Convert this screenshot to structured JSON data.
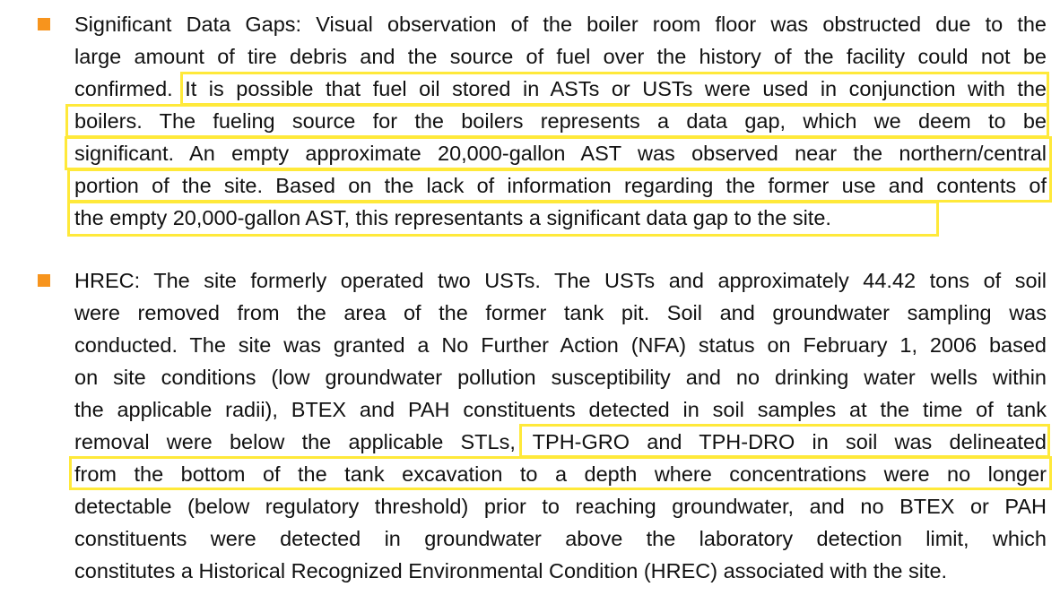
{
  "bullet_color": "#f7941d",
  "highlight_color": "#ffe93a",
  "paragraphs": [
    {
      "lines": [
        "Significant Data Gaps: Visual observation of the boiler room floor was obstructed due to the",
        "large amount of tire debris and the source of fuel over the history of the facility could not be",
        "confirmed. It is possible that fuel oil stored in ASTs or USTs were used in conjunction with the",
        "boilers. The fueling source for the boilers represents a data gap, which we deem to be",
        "significant. An empty approximate 20,000-gallon AST was observed near the northern/central",
        "portion of the site. Based on the lack of information regarding the former use and contents of",
        "the empty 20,000-gallon AST, this representants a significant data gap to the site."
      ]
    },
    {
      "lines": [
        "HREC: The site formerly operated two USTs. The USTs and approximately 44.42 tons of soil",
        "were removed from the area of the former tank pit. Soil and groundwater sampling was",
        "conducted.  The site was granted a No Further Action (NFA) status on February 1, 2006 based",
        "on site conditions (low groundwater pollution susceptibility and no drinking water wells within",
        "the applicable radii), BTEX and PAH constituents detected in soil samples at the time of tank",
        "removal were below the applicable STLs, TPH-GRO and TPH-DRO in soil was delineated",
        "from the bottom of the tank excavation to a depth where concentrations were no longer",
        "detectable (below regulatory threshold) prior to reaching groundwater, and no BTEX or PAH",
        "constituents were detected in groundwater above the laboratory detection limit, which",
        "constitutes a Historical Recognized Environmental Condition (HREC) associated with the site."
      ]
    }
  ]
}
